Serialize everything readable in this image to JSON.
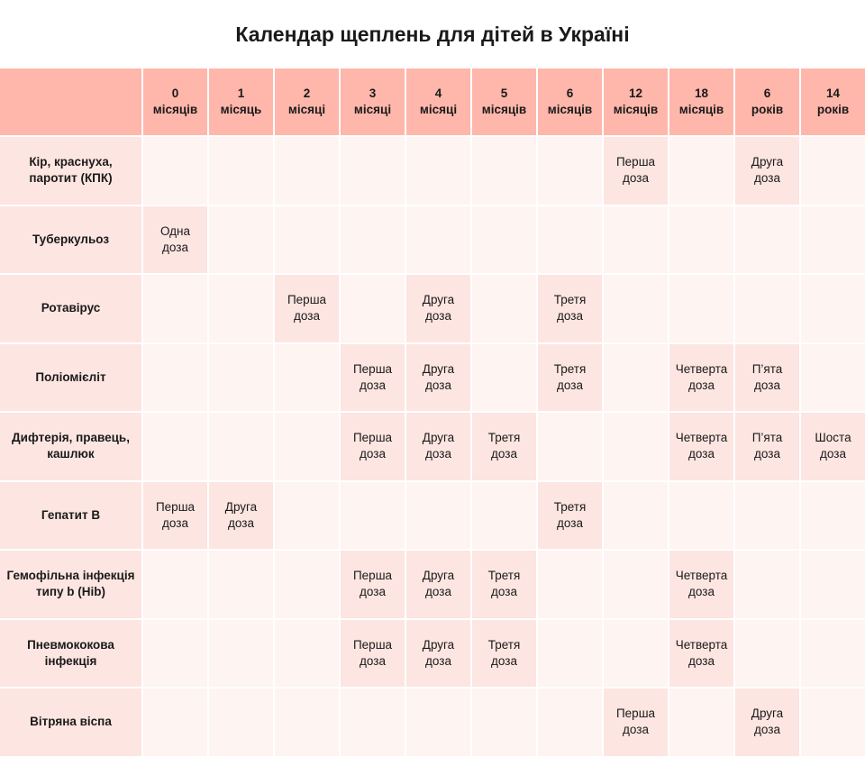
{
  "title": "Календар щеплень для дітей в Україні",
  "colors": {
    "header_bg": "#ffb6ab",
    "dose_bg": "#fde5e1",
    "empty_bg": "#fef4f2"
  },
  "columns": [
    {
      "top": "0",
      "bottom": "місяців"
    },
    {
      "top": "1",
      "bottom": "місяць"
    },
    {
      "top": "2",
      "bottom": "місяці"
    },
    {
      "top": "3",
      "bottom": "місяці"
    },
    {
      "top": "4",
      "bottom": "місяці"
    },
    {
      "top": "5",
      "bottom": "місяців"
    },
    {
      "top": "6",
      "bottom": "місяців"
    },
    {
      "top": "12",
      "bottom": "місяців"
    },
    {
      "top": "18",
      "bottom": "місяців"
    },
    {
      "top": "6",
      "bottom": "років"
    },
    {
      "top": "14",
      "bottom": "років"
    }
  ],
  "rows": [
    {
      "label": [
        "Кір, краснуха,",
        "паротит (КПК)"
      ],
      "cells": [
        "",
        "",
        "",
        "",
        "",
        "",
        "",
        "Перша доза",
        "",
        "Друга доза",
        ""
      ]
    },
    {
      "label": [
        "Туберкульоз"
      ],
      "cells": [
        "Одна доза",
        "",
        "",
        "",
        "",
        "",
        "",
        "",
        "",
        "",
        ""
      ]
    },
    {
      "label": [
        "Ротавірус"
      ],
      "cells": [
        "",
        "",
        "Перша доза",
        "",
        "Друга доза",
        "",
        "Третя доза",
        "",
        "",
        "",
        ""
      ]
    },
    {
      "label": [
        "Поліомієліт"
      ],
      "cells": [
        "",
        "",
        "",
        "Перша доза",
        "Друга доза",
        "",
        "Третя доза",
        "",
        "Четверта доза",
        "П’ята доза",
        ""
      ]
    },
    {
      "label": [
        "Дифтерія, правець,",
        "кашлюк"
      ],
      "cells": [
        "",
        "",
        "",
        "Перша доза",
        "Друга доза",
        "Третя доза",
        "",
        "",
        "Четверта доза",
        "П’ята доза",
        "Шоста доза"
      ]
    },
    {
      "label": [
        "Гепатит В"
      ],
      "cells": [
        "Перша доза",
        "Друга доза",
        "",
        "",
        "",
        "",
        "Третя доза",
        "",
        "",
        "",
        ""
      ]
    },
    {
      "label": [
        "Гемофільна інфекція",
        "типу b (Hib)"
      ],
      "cells": [
        "",
        "",
        "",
        "Перша доза",
        "Друга доза",
        "Третя доза",
        "",
        "",
        "Четверта доза",
        "",
        ""
      ]
    },
    {
      "label": [
        "Пневмококова",
        "інфекція"
      ],
      "cells": [
        "",
        "",
        "",
        "Перша доза",
        "Друга доза",
        "Третя доза",
        "",
        "",
        "Четверта доза",
        "",
        ""
      ]
    },
    {
      "label": [
        "Вітряна віспа"
      ],
      "cells": [
        "",
        "",
        "",
        "",
        "",
        "",
        "",
        "Перша доза",
        "",
        "Друга доза",
        ""
      ]
    }
  ]
}
